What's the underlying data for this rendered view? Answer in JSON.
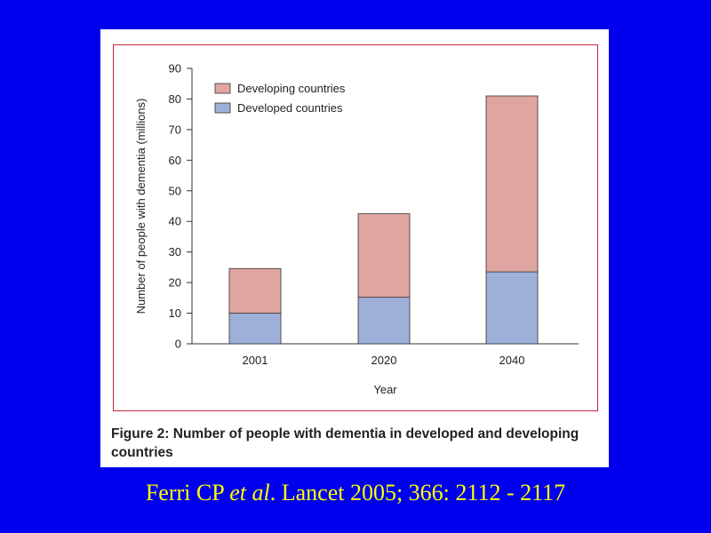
{
  "colors": {
    "background": "#0000ee",
    "developing": "#dfa5a1",
    "developed": "#9eafd8",
    "frame": "#c0283a",
    "citation": "#ffff00"
  },
  "chart_data": {
    "type": "bar",
    "stacked": true,
    "categories": [
      "2001",
      "2020",
      "2040"
    ],
    "series": [
      {
        "name": "Developed countries",
        "values": [
          10,
          15.2,
          23.5
        ]
      },
      {
        "name": "Developing countries",
        "values": [
          14.6,
          27.3,
          57.5
        ]
      }
    ],
    "xlabel": "Year",
    "ylabel": "Number of people with dementia (millions)",
    "ylim": [
      0,
      90
    ],
    "yticks": [
      "0",
      "10",
      "20",
      "30",
      "40",
      "50",
      "60",
      "70",
      "80",
      "90"
    ],
    "legend_position": "top-left",
    "grid": false
  },
  "caption": {
    "label": "Figure 2:",
    "text": "Number of people with dementia in developed and developing countries"
  },
  "citation": {
    "prefix": "Ferri CP ",
    "italic": "et al",
    "suffix": ". Lancet  2005; 366: 2112 - 2117"
  }
}
